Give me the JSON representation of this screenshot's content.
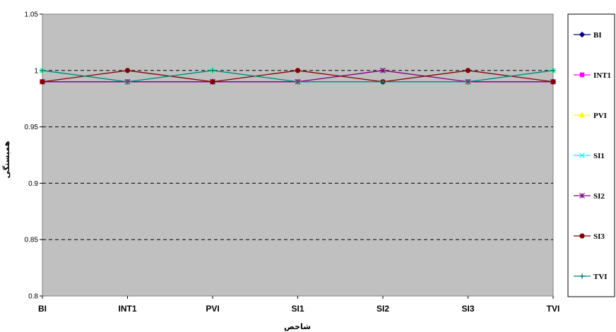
{
  "chart_data": {
    "type": "line",
    "categories": [
      "BI",
      "INT1",
      "PVI",
      "SI1",
      "SI2",
      "SI3",
      "TVI"
    ],
    "xlabel": "شاخص",
    "ylabel": "همبستگی",
    "ylim": [
      0.8,
      1.05
    ],
    "yticks": [
      "0.8",
      "0.85",
      "0.9",
      "0.95",
      "1",
      "1.05"
    ],
    "grid": "horizontal dashed",
    "plot_background": "#C0C0C0",
    "legend_position": "right",
    "series": [
      {
        "name": "BI",
        "color": "#000080",
        "marker": "diamond",
        "values": [
          0.99,
          0.99,
          0.99,
          0.99,
          0.99,
          0.99,
          0.99
        ]
      },
      {
        "name": "INT1",
        "color": "#FF00FF",
        "marker": "square",
        "values": [
          0.99,
          0.99,
          0.99,
          0.99,
          0.99,
          0.99,
          0.99
        ]
      },
      {
        "name": "PVI",
        "color": "#FFFF00",
        "marker": "triangle",
        "values": [
          1.0,
          0.99,
          1.0,
          0.99,
          0.99,
          0.99,
          1.0
        ]
      },
      {
        "name": "SI1",
        "color": "#00FFFF",
        "marker": "x",
        "values": [
          1.0,
          0.99,
          1.0,
          0.99,
          0.99,
          0.99,
          1.0
        ]
      },
      {
        "name": "SI2",
        "color": "#800080",
        "marker": "star",
        "values": [
          0.99,
          0.99,
          0.99,
          0.99,
          1.0,
          0.99,
          0.99
        ]
      },
      {
        "name": "SI3",
        "color": "#800000",
        "marker": "circle",
        "values": [
          0.99,
          1.0,
          0.99,
          1.0,
          0.99,
          1.0,
          0.99
        ]
      },
      {
        "name": "TVI",
        "color": "#008080",
        "marker": "plus",
        "values": [
          1.0,
          0.99,
          1.0,
          0.99,
          0.99,
          0.99,
          1.0
        ]
      }
    ]
  }
}
